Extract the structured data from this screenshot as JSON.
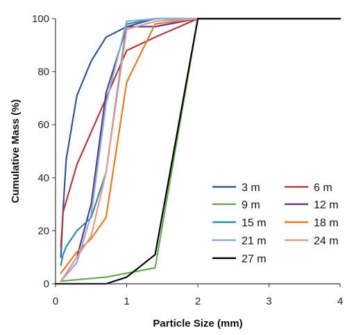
{
  "chart_data": {
    "type": "line",
    "title": "",
    "xlabel": "Particle Size (mm)",
    "ylabel": "Cumulative Mass (%)",
    "xlim": [
      0,
      4
    ],
    "ylim": [
      0,
      100
    ],
    "xticks": [
      0,
      1,
      2,
      3,
      4
    ],
    "yticks": [
      0,
      20,
      40,
      60,
      80,
      100
    ],
    "grid": false,
    "legend_position": "bottom-right",
    "series": [
      {
        "name": "3 m",
        "color": "#2f5597",
        "x": [
          0.075,
          0.106,
          0.15,
          0.3,
          0.5,
          0.71,
          1.0,
          1.4,
          2.0,
          4.0
        ],
        "y": [
          10,
          28,
          47,
          71,
          84,
          93,
          97,
          100,
          100,
          100
        ]
      },
      {
        "name": "6 m",
        "color": "#b03a3a",
        "x": [
          0.075,
          0.106,
          0.3,
          0.71,
          1.0,
          1.4,
          2.0
        ],
        "y": [
          14,
          27,
          45,
          70,
          88,
          93,
          100
        ]
      },
      {
        "name": "9 m",
        "color": "#6aa84f",
        "x": [
          0.075,
          0.5,
          0.71,
          1.0,
          1.4,
          2.0
        ],
        "y": [
          1,
          2,
          2.5,
          4,
          6,
          100
        ]
      },
      {
        "name": "12 m",
        "color": "#5b3a8c",
        "x": [
          0.075,
          0.3,
          0.5,
          0.71,
          1.0,
          1.4,
          2.0
        ],
        "y": [
          1,
          10,
          30,
          72,
          97,
          97,
          100
        ]
      },
      {
        "name": "15 m",
        "color": "#2e8b9a",
        "x": [
          0.075,
          0.106,
          0.15,
          0.3,
          0.5,
          0.71,
          1.0,
          1.4,
          2.0
        ],
        "y": [
          7,
          11,
          14,
          20,
          25,
          42,
          98,
          100,
          100
        ]
      },
      {
        "name": "18 m",
        "color": "#e07b22",
        "x": [
          0.075,
          0.3,
          0.5,
          0.71,
          1.0,
          1.4,
          2.0
        ],
        "y": [
          4,
          12,
          17,
          25,
          76,
          98,
          100
        ]
      },
      {
        "name": "21 m",
        "color": "#8aa9d6",
        "x": [
          0.075,
          0.3,
          0.5,
          0.71,
          1.0,
          1.4,
          2.0
        ],
        "y": [
          1,
          8,
          26,
          68,
          99,
          100,
          100
        ]
      },
      {
        "name": "24 m",
        "color": "#e39a94",
        "x": [
          0.075,
          0.3,
          0.5,
          0.71,
          1.0,
          1.4,
          2.0
        ],
        "y": [
          1,
          10,
          18,
          42,
          96,
          99,
          100
        ]
      },
      {
        "name": "27 m",
        "color": "#000000",
        "x": [
          0.0,
          0.71,
          1.0,
          1.4,
          2.0,
          4.0
        ],
        "y": [
          0,
          0,
          2.5,
          11,
          100,
          100
        ]
      }
    ]
  }
}
